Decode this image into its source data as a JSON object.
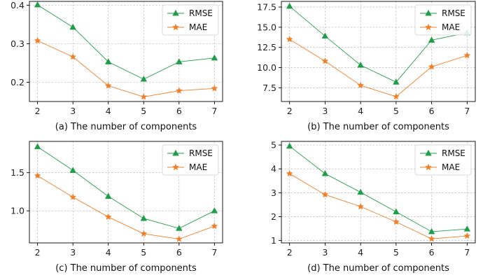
{
  "colors": {
    "rmse": "#1f9e49",
    "mae": "#f07f27",
    "grid": "#b0b0b0",
    "axis": "#000000"
  },
  "chart_data": [
    {
      "type": "line",
      "xlabel": "(a) The number of components",
      "x": [
        2,
        3,
        4,
        5,
        6,
        7
      ],
      "xticks": [
        "2",
        "3",
        "4",
        "5",
        "6",
        "7"
      ],
      "ylim": [
        0.15,
        0.41
      ],
      "yticks": [
        0.2,
        0.3,
        0.4
      ],
      "ytick_labels": [
        "0.2",
        "0.3",
        "0.4"
      ],
      "grid": true,
      "legend_position": "top-right",
      "series": [
        {
          "name": "RMSE",
          "marker": "triangle",
          "values": [
            0.401,
            0.343,
            0.253,
            0.208,
            0.253,
            0.263
          ]
        },
        {
          "name": "MAE",
          "marker": "star",
          "values": [
            0.308,
            0.266,
            0.191,
            0.162,
            0.178,
            0.184
          ]
        }
      ]
    },
    {
      "type": "line",
      "xlabel": "(b) The number of components",
      "x": [
        2,
        3,
        4,
        5,
        6,
        7
      ],
      "xticks": [
        "2",
        "3",
        "4",
        "5",
        "6",
        "7"
      ],
      "ylim": [
        5.8,
        18.2
      ],
      "yticks": [
        7.5,
        10.0,
        12.5,
        15.0,
        17.5
      ],
      "ytick_labels": [
        "7.5",
        "10.0",
        "12.5",
        "15.0",
        "17.5"
      ],
      "grid": true,
      "legend_position": "top-right",
      "series": [
        {
          "name": "RMSE",
          "marker": "triangle",
          "values": [
            17.6,
            13.9,
            10.3,
            8.2,
            13.4,
            14.3
          ]
        },
        {
          "name": "MAE",
          "marker": "star",
          "values": [
            13.5,
            10.8,
            7.8,
            6.4,
            10.1,
            11.5
          ]
        }
      ]
    },
    {
      "type": "line",
      "xlabel": "(c) The number of components",
      "x": [
        2,
        3,
        4,
        5,
        6,
        7
      ],
      "xticks": [
        "2",
        "3",
        "4",
        "5",
        "6",
        "7"
      ],
      "ylim": [
        0.58,
        1.91
      ],
      "yticks": [
        1.0,
        1.5
      ],
      "ytick_labels": [
        "1.0",
        "1.5"
      ],
      "grid": true,
      "legend_position": "top-right",
      "series": [
        {
          "name": "RMSE",
          "marker": "triangle",
          "values": [
            1.84,
            1.53,
            1.19,
            0.9,
            0.77,
            1.0
          ]
        },
        {
          "name": "MAE",
          "marker": "star",
          "values": [
            1.46,
            1.18,
            0.92,
            0.7,
            0.63,
            0.8
          ]
        }
      ]
    },
    {
      "type": "line",
      "xlabel": "(d) The number of components",
      "x": [
        2,
        3,
        4,
        5,
        6,
        7
      ],
      "xticks": [
        "2",
        "3",
        "4",
        "5",
        "6",
        "7"
      ],
      "ylim": [
        0.9,
        5.15
      ],
      "yticks": [
        1,
        2,
        3,
        4,
        5
      ],
      "ytick_labels": [
        "1",
        "2",
        "3",
        "4",
        "5"
      ],
      "grid": true,
      "legend_position": "top-right",
      "series": [
        {
          "name": "RMSE",
          "marker": "triangle",
          "values": [
            4.95,
            3.8,
            3.02,
            2.2,
            1.37,
            1.48
          ]
        },
        {
          "name": "MAE",
          "marker": "star",
          "values": [
            3.8,
            2.92,
            2.42,
            1.78,
            1.07,
            1.19
          ]
        }
      ]
    }
  ]
}
